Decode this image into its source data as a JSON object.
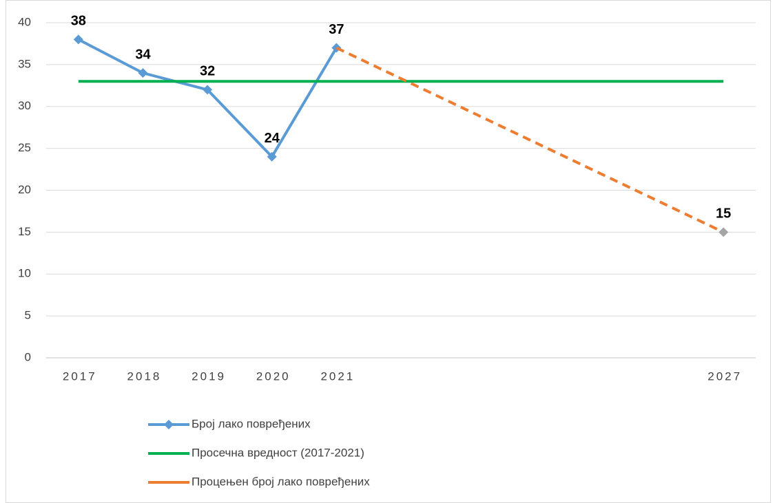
{
  "chart_data": {
    "type": "line",
    "x": [
      2017,
      2018,
      2019,
      2020,
      2021,
      2027
    ],
    "xlim": [
      2016.5,
      2027.5
    ],
    "xticks": [
      2017,
      2018,
      2019,
      2020,
      2021,
      2027
    ],
    "ylim": [
      0,
      40
    ],
    "yticks": [
      0,
      5,
      10,
      15,
      20,
      25,
      30,
      35,
      40
    ],
    "grid": true,
    "series": [
      {
        "name": "Број лако повређених",
        "color": "#5b9bd5",
        "values": [
          38,
          34,
          32,
          24,
          37,
          null
        ],
        "marker": "diamond",
        "labels": true
      },
      {
        "name": "Просечна вредност (2017-2021)",
        "color": "#00b050",
        "values": [
          33,
          33,
          33,
          33,
          33,
          33
        ]
      },
      {
        "name": "Процењен број лако повређених",
        "color": "#ed7d31",
        "values": [
          null,
          null,
          null,
          null,
          37,
          15
        ],
        "dashed": true
      },
      {
        "color": "#a5a5a5",
        "values": [
          null,
          null,
          null,
          null,
          null,
          15
        ],
        "marker": "diamond",
        "labels": true
      }
    ]
  }
}
